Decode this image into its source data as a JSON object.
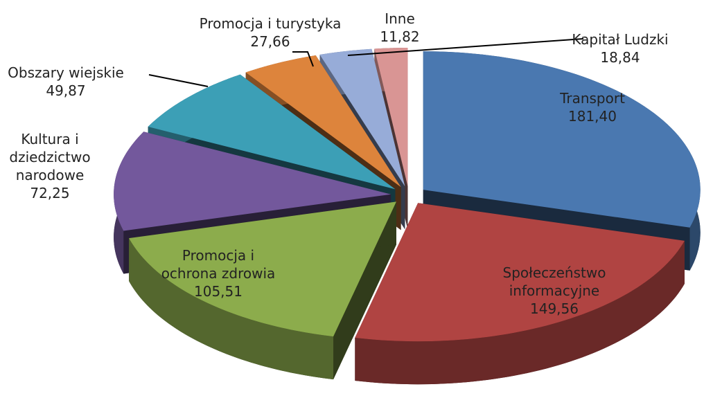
{
  "chart_data": {
    "type": "pie3d",
    "categories": [
      "Transport",
      "Społeczeństwo informacyjne",
      "Promocja i ochrona zdrowia",
      "Kultura i dziedzictwo narodowe",
      "Obszary wiejskie",
      "Promocja i turystyka",
      "Kapitał Ludzki",
      "Inne"
    ],
    "values": [
      181.4,
      149.56,
      105.51,
      72.25,
      49.87,
      27.66,
      18.84,
      11.82
    ],
    "value_labels": [
      "181,40",
      "149,56",
      "105,51",
      "72,25",
      "49,87",
      "27,66",
      "18,84",
      "11,82"
    ],
    "colors": [
      "#4a78b0",
      "#b04442",
      "#8cac4c",
      "#73589c",
      "#3c9fb6",
      "#dd843c",
      "#97acd8",
      "#d99594"
    ]
  }
}
